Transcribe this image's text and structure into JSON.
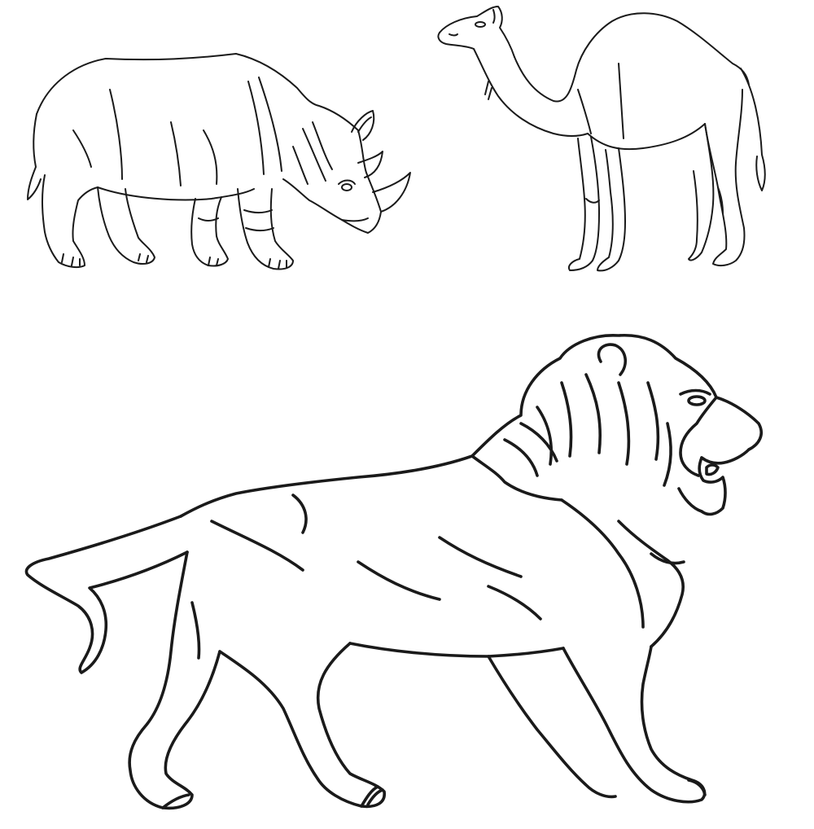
{
  "scene": {
    "background": "#ffffff",
    "line_color": "#1a1a1a",
    "style": "line-art",
    "subjects": [
      "rhinoceros",
      "camel",
      "lion"
    ]
  }
}
